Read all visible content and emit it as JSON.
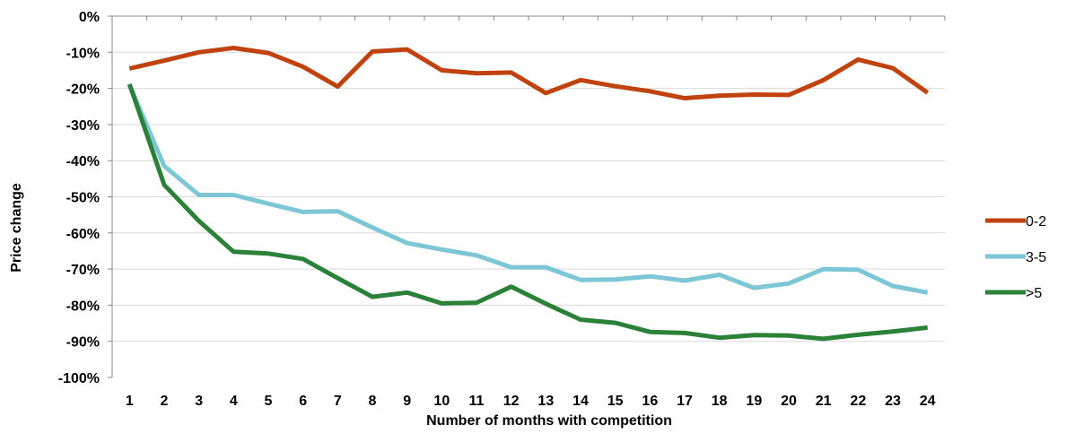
{
  "chart_data": {
    "type": "line",
    "title": "",
    "xlabel": "Number of months with competition",
    "ylabel": "Price change",
    "x": [
      1,
      2,
      3,
      4,
      5,
      6,
      7,
      8,
      9,
      10,
      11,
      12,
      13,
      14,
      15,
      16,
      17,
      18,
      19,
      20,
      21,
      22,
      23,
      24
    ],
    "ylim": [
      -100,
      0
    ],
    "y_ticks": [
      "0%",
      "-10%",
      "-20%",
      "-30%",
      "-40%",
      "-50%",
      "-60%",
      "-70%",
      "-80%",
      "-90%",
      "-100%"
    ],
    "grid": true,
    "legend_position": "right",
    "series": [
      {
        "name": "0-2",
        "color": "#C0420F",
        "values": [
          -14.5,
          -12.3,
          -10.0,
          -8.8,
          -10.2,
          -14.0,
          -19.5,
          -9.8,
          -9.2,
          -15.0,
          -15.8,
          -15.6,
          -21.3,
          -17.7,
          -19.4,
          -20.8,
          -22.7,
          -22.0,
          -21.7,
          -21.8,
          -17.7,
          -12.0,
          -14.4,
          -21.2
        ]
      },
      {
        "name": "3-5",
        "color": "#7CC6D5",
        "values": [
          -19.0,
          -41.5,
          -49.5,
          -49.5,
          -51.9,
          -54.2,
          -54.0,
          -58.5,
          -62.8,
          -64.6,
          -66.2,
          -69.5,
          -69.5,
          -73.0,
          -72.9,
          -72.0,
          -73.2,
          -71.6,
          -75.2,
          -74.0,
          -70.0,
          -70.2,
          -74.7,
          -76.5
        ]
      },
      {
        "name": ">5",
        "color": "#2A8137",
        "values": [
          -18.8,
          -46.7,
          -56.7,
          -65.2,
          -65.7,
          -67.2,
          -72.5,
          -77.7,
          -76.5,
          -79.5,
          -79.3,
          -74.9,
          -79.6,
          -84.0,
          -84.9,
          -87.4,
          -87.7,
          -89.0,
          -88.3,
          -88.4,
          -89.3,
          -88.2,
          -87.3,
          -86.2
        ]
      }
    ]
  }
}
